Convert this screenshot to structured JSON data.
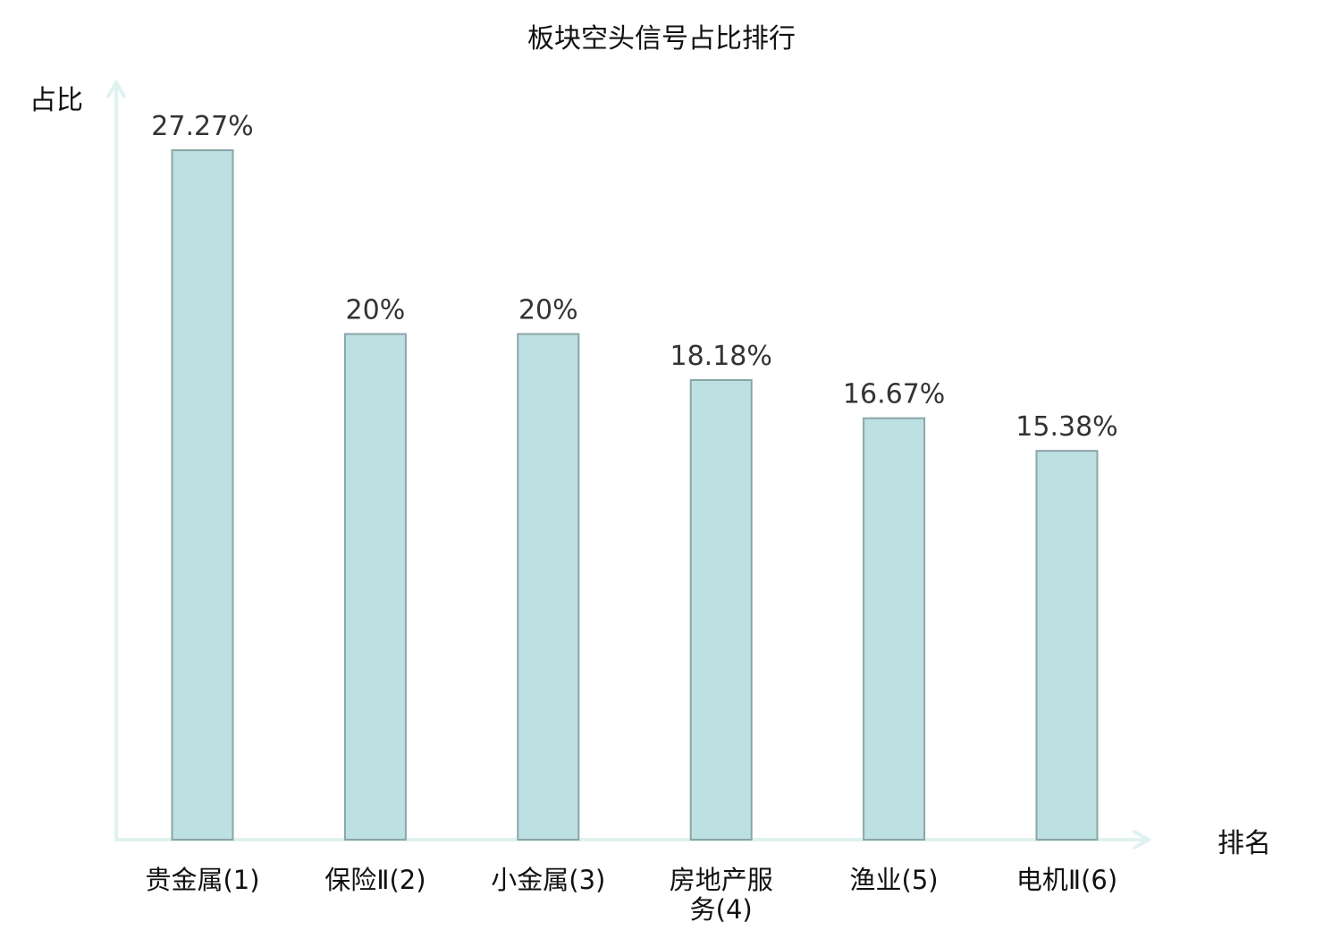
{
  "chart_data": {
    "type": "bar",
    "title": "板块空头信号占比排行",
    "ylabel": "占比",
    "xlabel": "排名",
    "categories": [
      [
        "贵金属(1)"
      ],
      [
        "保险Ⅱ(2)"
      ],
      [
        "小金属(3)"
      ],
      [
        "房地产服",
        "务(4)"
      ],
      [
        "渔业(5)"
      ],
      [
        "电机Ⅱ(6)"
      ]
    ],
    "values": [
      27.27,
      20,
      20,
      18.18,
      16.67,
      15.38
    ],
    "value_labels": [
      "27.27%",
      "20%",
      "20%",
      "18.18%",
      "16.67%",
      "15.38%"
    ],
    "highlight_index": 5,
    "ylim": [
      0,
      30
    ],
    "grid": false,
    "legend": "none"
  },
  "colors": {
    "bar_fill": "#bde0e2",
    "bar_stroke": "#8aa5a7",
    "axis": "#dff2f0",
    "text": "#111111",
    "value_text": "#333333",
    "highlight_text": "#e8141a"
  }
}
